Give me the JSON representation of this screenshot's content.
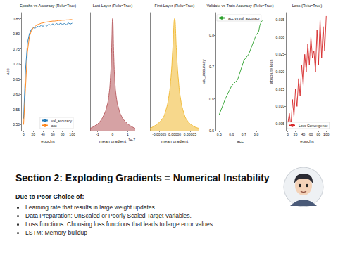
{
  "chart_data": [
    {
      "type": "line",
      "title": "Epochs vs Accuracy (Relu=True)",
      "x_label": "epochs",
      "y_label": "acc",
      "x": [
        0,
        4,
        8,
        12,
        16,
        20,
        24,
        28,
        32,
        36,
        40,
        44,
        48,
        52,
        56,
        60,
        64,
        68,
        72,
        76,
        80,
        84,
        88,
        92,
        96,
        100
      ],
      "series": [
        {
          "name": "val_accuracy",
          "color": "#1f77b4",
          "values": [
            0.52,
            0.68,
            0.77,
            0.8,
            0.815,
            0.82,
            0.818,
            0.825,
            0.822,
            0.828,
            0.825,
            0.83,
            0.826,
            0.832,
            0.828,
            0.833,
            0.829,
            0.834,
            0.83,
            0.835,
            0.831,
            0.834,
            0.83,
            0.836,
            0.832,
            0.835
          ]
        },
        {
          "name": "acc",
          "color": "#ff7f0e",
          "values": [
            0.5,
            0.62,
            0.74,
            0.79,
            0.81,
            0.82,
            0.825,
            0.83,
            0.832,
            0.835,
            0.836,
            0.838,
            0.839,
            0.84,
            0.841,
            0.842,
            0.842,
            0.843,
            0.844,
            0.844,
            0.845,
            0.845,
            0.846,
            0.846,
            0.847,
            0.847
          ]
        }
      ],
      "xlim": [
        -5,
        105
      ],
      "xticks": [
        0,
        20,
        40,
        60,
        80,
        100
      ],
      "ylim": [
        0.48,
        0.87
      ],
      "yticks": [
        {
          "value": 0.5,
          "label": "0.50"
        },
        0.55,
        {
          "value": 0.6,
          "label": "0.60"
        },
        0.65,
        {
          "value": 0.7,
          "label": "0.70"
        },
        0.75,
        {
          "value": 0.8,
          "label": "0.80"
        },
        0.85
      ],
      "grid": false,
      "legend": "lower right"
    },
    {
      "type": "area",
      "title": "Last Layer (Relu=True)",
      "x_label": "mean gradient",
      "annotation": "1e-7",
      "x": [
        -1.5,
        -1.2,
        -0.9,
        -0.6,
        -0.4,
        -0.25,
        -0.15,
        -0.08,
        0,
        0.08,
        0.15,
        0.25,
        0.4,
        0.6,
        0.9,
        1.2,
        1.5
      ],
      "series": [
        {
          "name": "Last Layer",
          "color": "#b5565a",
          "values": [
            0.02,
            0.04,
            0.07,
            0.13,
            0.2,
            0.3,
            0.45,
            0.65,
            0.95,
            0.62,
            0.42,
            0.28,
            0.19,
            0.12,
            0.07,
            0.04,
            0.02
          ]
        }
      ],
      "xlim": [
        -1.5,
        1.5
      ],
      "xticks": [
        -1,
        0,
        1
      ],
      "ylim": [
        0,
        1
      ],
      "grid": false,
      "tick_labels": "x"
    },
    {
      "type": "area",
      "title": "First Layer (Relu=True)",
      "x_label": "mean gradient",
      "x": [
        -8e-05,
        -6e-05,
        -4e-05,
        -3e-05,
        -2e-05,
        -1.2e-05,
        -6e-06,
        0,
        6e-06,
        1.2e-05,
        2e-05,
        3e-05,
        4e-05,
        6e-05,
        8e-05
      ],
      "series": [
        {
          "name": "First Layer",
          "color": "#f0b82e",
          "values": [
            0.02,
            0.05,
            0.1,
            0.16,
            0.27,
            0.45,
            0.7,
            0.95,
            0.68,
            0.44,
            0.26,
            0.15,
            0.09,
            0.04,
            0.02
          ]
        }
      ],
      "xlim": [
        -8e-05,
        8e-05
      ],
      "xticks": [
        {
          "value": -5e-05,
          "label": "-0.00005"
        },
        {
          "value": 0,
          "label": "0.00000"
        },
        {
          "value": 5e-05,
          "label": "0.00005"
        }
      ],
      "ylim": [
        0,
        1
      ],
      "grid": false,
      "tick_labels": "x"
    },
    {
      "type": "line",
      "title": "Validate vs Train Accuracy (Relu=True)",
      "x_label": "acc",
      "y_label": "val_accuracy",
      "x": [
        0.5,
        0.55,
        0.6,
        0.65,
        0.7,
        0.74,
        0.78,
        0.8,
        0.82,
        0.83,
        0.84,
        0.85
      ],
      "series": [
        {
          "name": "acc vs val_accuracy",
          "color": "#2ca02c",
          "values": [
            0.55,
            0.6,
            0.64,
            0.66,
            0.72,
            0.74,
            0.78,
            0.8,
            0.81,
            0.83,
            0.84,
            0.845
          ]
        }
      ],
      "xlim": [
        0.47,
        0.87
      ],
      "xticks": [
        0.5,
        0.6,
        0.7,
        0.8
      ],
      "ylim": [
        0.5,
        0.87
      ],
      "yticks": [
        0.5,
        0.6,
        0.7,
        0.8
      ],
      "grid": false,
      "legend": "upper left"
    },
    {
      "type": "line",
      "title": "Loss (Relu=True)",
      "x_label": "epochs",
      "y_label": "absolute loss",
      "x": [
        0,
        4,
        8,
        12,
        16,
        20,
        24,
        28,
        32,
        36,
        40,
        44,
        48,
        52,
        56,
        60,
        64,
        68,
        72,
        76,
        80,
        84,
        88,
        92,
        96,
        100
      ],
      "series": [
        {
          "name": "Loss Convergence",
          "color": "#d62728",
          "values": [
            0.005,
            0.008,
            0.004,
            0.012,
            0.007,
            0.015,
            0.01,
            0.018,
            0.013,
            0.022,
            0.016,
            0.025,
            0.02,
            0.028,
            0.022,
            0.03,
            0.024,
            0.026,
            0.02,
            0.032,
            0.022,
            0.035,
            0.024,
            0.033,
            0.026,
            0.036
          ]
        }
      ],
      "xlim": [
        -5,
        105
      ],
      "xticks": [
        0,
        20,
        40,
        60,
        80,
        100
      ],
      "ylim": [
        0.003,
        0.037
      ],
      "yticks": [
        0.005,
        {
          "value": 0.01,
          "label": "0.010"
        },
        0.015,
        {
          "value": 0.02,
          "label": "0.020"
        },
        0.025,
        {
          "value": 0.03,
          "label": "0.030"
        },
        0.035
      ],
      "grid": false,
      "legend": "lower left"
    }
  ],
  "section": {
    "title": "Section 2: Exploding Gradients = Numerical Instability",
    "subtitle": "Due to Poor Choice of:",
    "items": [
      "Learning rate that results in large weight updates.",
      "Data Preparation: UnScaled or Poorly Scaled Target Variables.",
      "Loss functions: Choosing loss functions that leads to large error values.",
      "LSTM: Memory buildup"
    ]
  }
}
